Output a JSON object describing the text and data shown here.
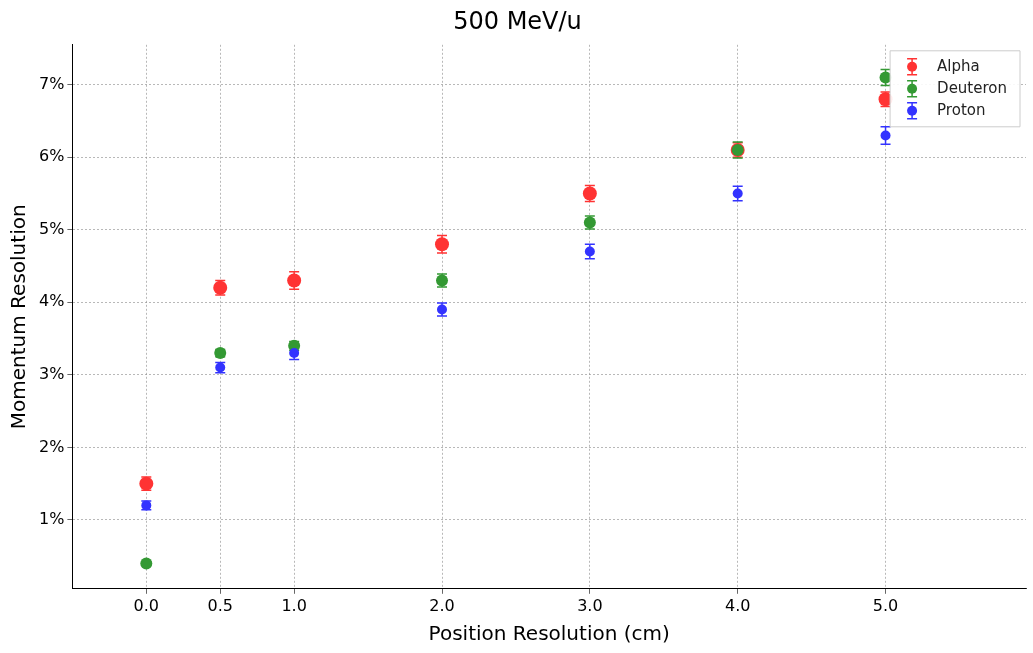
{
  "chart_data": {
    "type": "scatter",
    "title": "500 MeV/u",
    "xlabel": "Position Resolution (cm)",
    "ylabel": "Momentum Resolution",
    "x": [
      0,
      0.5,
      1,
      2,
      3,
      4,
      5
    ],
    "series": [
      {
        "name": "Alpha",
        "color": "#ff3333",
        "values": [
          1.5,
          4.2,
          4.3,
          4.8,
          5.5,
          6.1,
          6.8
        ],
        "errors": [
          0.09,
          0.1,
          0.12,
          0.12,
          0.11,
          0.1,
          0.1
        ]
      },
      {
        "name": "Deuteron",
        "color": "#339933",
        "values": [
          0.4,
          3.3,
          3.4,
          4.3,
          5.1,
          6.1,
          7.1
        ],
        "errors": [
          0.02,
          0.05,
          0.06,
          0.09,
          0.09,
          0.11,
          0.11
        ]
      },
      {
        "name": "Proton",
        "color": "#3333ff",
        "values": [
          1.2,
          3.1,
          3.3,
          3.9,
          4.7,
          5.5,
          6.3
        ],
        "errors": [
          0.06,
          0.07,
          0.09,
          0.09,
          0.1,
          0.1,
          0.12
        ]
      }
    ],
    "xlim": [
      -0.5,
      5.95
    ],
    "ylim": [
      0.05,
      7.55
    ],
    "xticks": [
      {
        "value": 0,
        "label": "0.0"
      },
      {
        "value": 0.5,
        "label": "0.5"
      },
      {
        "value": 1,
        "label": "1.0"
      },
      {
        "value": 2,
        "label": "2.0"
      },
      {
        "value": 3,
        "label": "3.0"
      },
      {
        "value": 4,
        "label": "4.0"
      },
      {
        "value": 5,
        "label": "5.0"
      }
    ],
    "yticks": [
      {
        "value": 1,
        "label": "1%"
      },
      {
        "value": 2,
        "label": "2%"
      },
      {
        "value": 3,
        "label": "3%"
      },
      {
        "value": 4,
        "label": "4%"
      },
      {
        "value": 5,
        "label": "5%"
      },
      {
        "value": 6,
        "label": "6%"
      },
      {
        "value": 7,
        "label": "7%"
      }
    ],
    "grid": true,
    "legend": "top right",
    "marker": "circle"
  }
}
